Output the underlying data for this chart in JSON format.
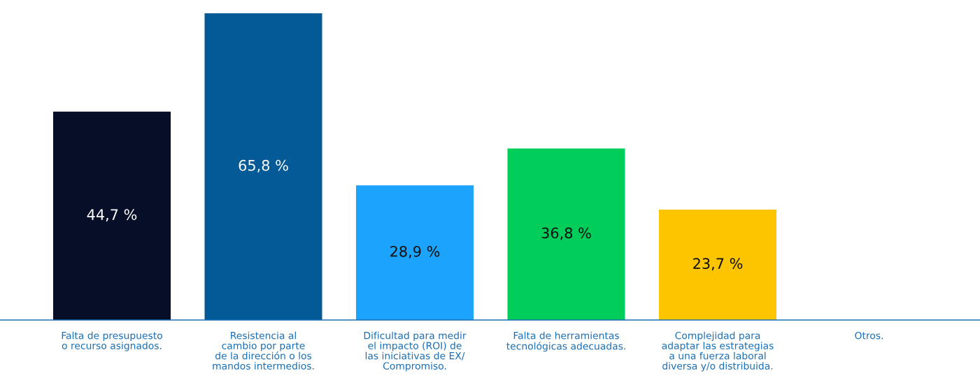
{
  "chart_data": {
    "type": "bar",
    "categories": [
      "Falta de presupuesto\no recurso asignados.",
      "Resistencia al\ncambio por parte\nde la dirección o los\nmandos intermedios.",
      "Dificultad para medir\nel impacto (ROI) de\nlas iniciativas de EX/\nCompromiso.",
      "Falta de herramientas\ntecnológicas adecuadas.",
      "Complejidad para\nadaptar las estrategias\na una fuerza laboral\ndiversa y/o distribuida.",
      "Otros."
    ],
    "values": [
      44.7,
      65.8,
      28.9,
      36.8,
      23.7,
      null
    ],
    "colors": [
      "#070f28",
      "#035a96",
      "#1ca3fc",
      "#00cd5a",
      "#fdc500",
      "#cccccc"
    ],
    "value_labels": [
      "44,7 %",
      "65,8 %",
      "28,9 %",
      "36,8 %",
      "23,7 %",
      null
    ],
    "grid": false,
    "legend": false
  }
}
